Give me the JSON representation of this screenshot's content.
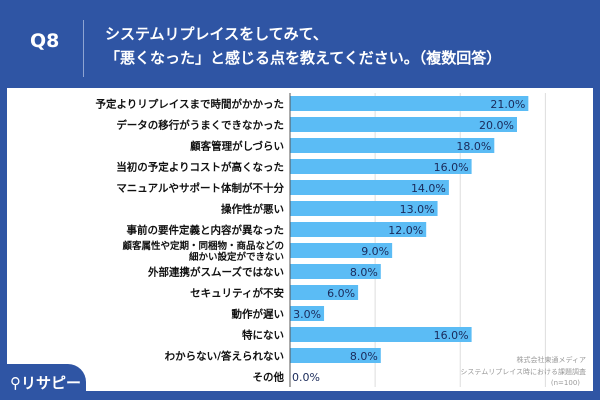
{
  "header": {
    "q": "Q8",
    "title_line1": "システムリプレイスをしてみて、",
    "title_line2": "「悪くなった」と感じる点を教えてください。（複数回答）"
  },
  "logo": "リサピー",
  "source": {
    "company": "株式会社東通メディア",
    "survey": "システムリプレイス時における課題調査",
    "n": "(n=100)"
  },
  "chart_data": {
    "type": "bar",
    "orientation": "horizontal",
    "unit": "%",
    "xlim": [
      0,
      27
    ],
    "grid": true,
    "bar_color": "#5bbcf5",
    "categories": [
      "予定よりリプレイスまで時間がかかった",
      "データの移行がうまくできなかった",
      "顧客管理がしづらい",
      "当初の予定よりコストが高くなった",
      "マニュアルやサポート体制が不十分",
      "操作性が悪い",
      "事前の要件定義と内容が異なった",
      "顧客属性や定期・同梱物・商品などの\n細かい設定ができない",
      "外部連携がスムーズではない",
      "セキュリティが不安",
      "動作が遅い",
      "特にない",
      "わからない/答えられない",
      "その他"
    ],
    "values": [
      21.0,
      20.0,
      18.0,
      16.0,
      14.0,
      13.0,
      12.0,
      9.0,
      8.0,
      6.0,
      3.0,
      16.0,
      8.0,
      0.0
    ],
    "labels": [
      "21.0%",
      "20.0%",
      "18.0%",
      "16.0%",
      "14.0%",
      "13.0%",
      "12.0%",
      "9.0%",
      "8.0%",
      "6.0%",
      "3.0%",
      "16.0%",
      "8.0%",
      "0.0%"
    ]
  }
}
